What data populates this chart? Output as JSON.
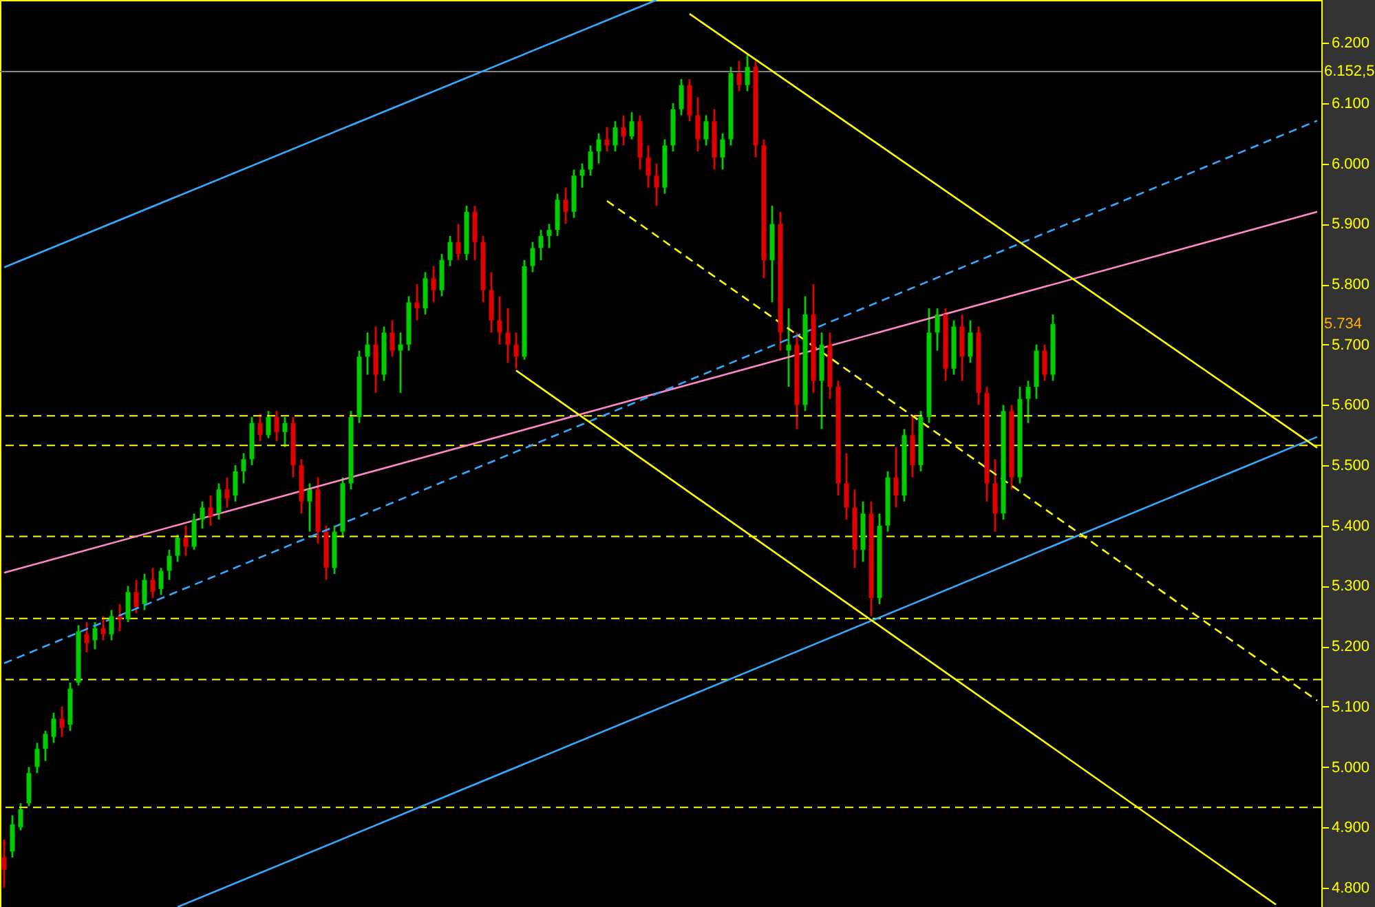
{
  "chart_data": {
    "type": "candlestick",
    "categories": [
      null,
      null,
      null,
      null,
      null,
      null,
      null,
      null,
      null,
      null,
      null,
      null,
      null,
      null,
      null,
      null,
      null,
      null,
      null,
      null,
      null,
      null,
      null,
      null,
      null,
      null,
      null,
      null,
      null,
      null,
      null,
      null,
      null,
      null,
      null,
      null,
      null,
      null,
      null,
      null,
      null,
      null,
      null,
      null,
      null,
      null,
      null,
      null,
      null,
      null,
      null,
      null,
      null,
      null,
      null,
      null,
      null,
      null,
      null,
      null,
      null,
      null,
      null,
      null,
      null,
      null,
      null,
      null,
      null,
      null,
      null,
      null,
      null,
      null,
      null,
      null,
      null,
      null,
      null,
      null,
      null,
      null,
      null,
      null,
      null,
      null,
      null,
      null,
      null,
      null,
      null,
      null,
      null,
      null,
      null,
      null,
      null,
      null,
      null,
      null,
      null,
      null,
      null,
      null,
      null,
      null,
      null,
      null,
      null,
      null,
      null,
      null,
      null,
      null,
      null,
      null,
      null,
      null,
      null,
      null,
      null,
      null,
      null,
      null,
      null,
      null,
      null,
      null,
      null,
      null,
      null,
      null,
      null,
      null,
      null,
      null,
      null,
      null,
      null,
      null,
      null,
      null,
      null,
      null,
      null,
      null,
      null,
      null,
      null,
      null,
      null,
      null,
      null,
      null,
      null,
      null,
      null,
      null,
      null,
      null
    ],
    "ohlc": [
      [
        4850,
        4880,
        4800,
        4830
      ],
      [
        4860,
        4920,
        4850,
        4905
      ],
      [
        4900,
        4940,
        4895,
        4930
      ],
      [
        4940,
        5000,
        4935,
        4990
      ],
      [
        5000,
        5040,
        4990,
        5030
      ],
      [
        5030,
        5060,
        5010,
        5055
      ],
      [
        5050,
        5090,
        5040,
        5080
      ],
      [
        5080,
        5100,
        5050,
        5065
      ],
      [
        5070,
        5140,
        5060,
        5130
      ],
      [
        5140,
        5235,
        5135,
        5225
      ],
      [
        5220,
        5240,
        5190,
        5205
      ],
      [
        5210,
        5240,
        5195,
        5230
      ],
      [
        5230,
        5250,
        5210,
        5220
      ],
      [
        5220,
        5260,
        5210,
        5250
      ],
      [
        5250,
        5270,
        5225,
        5245
      ],
      [
        5245,
        5300,
        5240,
        5290
      ],
      [
        5290,
        5310,
        5255,
        5265
      ],
      [
        5270,
        5320,
        5260,
        5310
      ],
      [
        5310,
        5330,
        5280,
        5290
      ],
      [
        5295,
        5330,
        5285,
        5325
      ],
      [
        5325,
        5360,
        5310,
        5350
      ],
      [
        5350,
        5385,
        5340,
        5380
      ],
      [
        5380,
        5400,
        5350,
        5365
      ],
      [
        5365,
        5420,
        5360,
        5410
      ],
      [
        5410,
        5440,
        5395,
        5430
      ],
      [
        5430,
        5450,
        5400,
        5415
      ],
      [
        5420,
        5470,
        5410,
        5460
      ],
      [
        5460,
        5480,
        5430,
        5445
      ],
      [
        5450,
        5500,
        5440,
        5490
      ],
      [
        5490,
        5520,
        5470,
        5510
      ],
      [
        5510,
        5580,
        5500,
        5570
      ],
      [
        5570,
        5585,
        5540,
        5550
      ],
      [
        5550,
        5590,
        5545,
        5580
      ],
      [
        5580,
        5590,
        5540,
        5555
      ],
      [
        5555,
        5580,
        5530,
        5570
      ],
      [
        5570,
        5580,
        5480,
        5500
      ],
      [
        5500,
        5510,
        5420,
        5440
      ],
      [
        5440,
        5470,
        5390,
        5460
      ],
      [
        5460,
        5480,
        5370,
        5390
      ],
      [
        5390,
        5400,
        5310,
        5330
      ],
      [
        5330,
        5400,
        5320,
        5390
      ],
      [
        5390,
        5480,
        5380,
        5470
      ],
      [
        5470,
        5590,
        5460,
        5580
      ],
      [
        5580,
        5690,
        5570,
        5680
      ],
      [
        5680,
        5720,
        5650,
        5700
      ],
      [
        5700,
        5730,
        5620,
        5650
      ],
      [
        5650,
        5730,
        5640,
        5720
      ],
      [
        5720,
        5740,
        5680,
        5690
      ],
      [
        5690,
        5720,
        5620,
        5700
      ],
      [
        5700,
        5780,
        5690,
        5770
      ],
      [
        5770,
        5800,
        5740,
        5760
      ],
      [
        5760,
        5820,
        5750,
        5810
      ],
      [
        5810,
        5830,
        5770,
        5790
      ],
      [
        5790,
        5850,
        5780,
        5840
      ],
      [
        5840,
        5880,
        5830,
        5870
      ],
      [
        5870,
        5900,
        5840,
        5850
      ],
      [
        5850,
        5930,
        5840,
        5920
      ],
      [
        5920,
        5930,
        5840,
        5870
      ],
      [
        5870,
        5880,
        5770,
        5790
      ],
      [
        5790,
        5820,
        5720,
        5740
      ],
      [
        5740,
        5780,
        5700,
        5720
      ],
      [
        5720,
        5760,
        5670,
        5700
      ],
      [
        5700,
        5720,
        5660,
        5680
      ],
      [
        5680,
        5840,
        5675,
        5830
      ],
      [
        5830,
        5870,
        5820,
        5860
      ],
      [
        5860,
        5890,
        5840,
        5880
      ],
      [
        5880,
        5900,
        5860,
        5890
      ],
      [
        5890,
        5950,
        5880,
        5940
      ],
      [
        5940,
        5960,
        5900,
        5920
      ],
      [
        5920,
        5990,
        5910,
        5980
      ],
      [
        5980,
        6000,
        5960,
        5990
      ],
      [
        5990,
        6030,
        5980,
        6020
      ],
      [
        6020,
        6050,
        6000,
        6040
      ],
      [
        6040,
        6060,
        6020,
        6030
      ],
      [
        6030,
        6070,
        6020,
        6060
      ],
      [
        6060,
        6080,
        6030,
        6045
      ],
      [
        6045,
        6085,
        6040,
        6070
      ],
      [
        6070,
        6080,
        5990,
        6010
      ],
      [
        6010,
        6030,
        5960,
        5980
      ],
      [
        5980,
        6000,
        5930,
        5960
      ],
      [
        5960,
        6040,
        5950,
        6030
      ],
      [
        6030,
        6100,
        6020,
        6090
      ],
      [
        6090,
        6140,
        6080,
        6130
      ],
      [
        6130,
        6140,
        6070,
        6080
      ],
      [
        6080,
        6110,
        6020,
        6040
      ],
      [
        6040,
        6080,
        6030,
        6070
      ],
      [
        6070,
        6090,
        5990,
        6010
      ],
      [
        6010,
        6050,
        5990,
        6040
      ],
      [
        6040,
        6160,
        6030,
        6150
      ],
      [
        6150,
        6170,
        6120,
        6130
      ],
      [
        6130,
        6180,
        6120,
        6160
      ],
      [
        6160,
        6170,
        6010,
        6030
      ],
      [
        6030,
        6040,
        5810,
        5840
      ],
      [
        5840,
        5930,
        5770,
        5900
      ],
      [
        5900,
        5920,
        5690,
        5720
      ],
      [
        5690,
        5760,
        5630,
        5700
      ],
      [
        5700,
        5720,
        5560,
        5600
      ],
      [
        5600,
        5780,
        5590,
        5750
      ],
      [
        5750,
        5800,
        5620,
        5640
      ],
      [
        5640,
        5720,
        5560,
        5700
      ],
      [
        5700,
        5720,
        5610,
        5630
      ],
      [
        5630,
        5640,
        5450,
        5470
      ],
      [
        5470,
        5520,
        5410,
        5430
      ],
      [
        5430,
        5460,
        5330,
        5360
      ],
      [
        5360,
        5440,
        5340,
        5420
      ],
      [
        5420,
        5440,
        5250,
        5280
      ],
      [
        5280,
        5420,
        5270,
        5400
      ],
      [
        5400,
        5490,
        5390,
        5480
      ],
      [
        5480,
        5530,
        5430,
        5450
      ],
      [
        5450,
        5560,
        5440,
        5550
      ],
      [
        5550,
        5580,
        5480,
        5500
      ],
      [
        5500,
        5590,
        5490,
        5580
      ],
      [
        5580,
        5760,
        5570,
        5720
      ],
      [
        5720,
        5760,
        5690,
        5750
      ],
      [
        5750,
        5760,
        5640,
        5660
      ],
      [
        5660,
        5740,
        5650,
        5730
      ],
      [
        5730,
        5750,
        5640,
        5680
      ],
      [
        5680,
        5740,
        5670,
        5720
      ],
      [
        5720,
        5730,
        5600,
        5620
      ],
      [
        5620,
        5630,
        5440,
        5470
      ],
      [
        5470,
        5510,
        5390,
        5420
      ],
      [
        5420,
        5600,
        5410,
        5590
      ],
      [
        5590,
        5600,
        5460,
        5480
      ],
      [
        5480,
        5630,
        5470,
        5610
      ],
      [
        5610,
        5640,
        5570,
        5630
      ],
      [
        5630,
        5700,
        5610,
        5690
      ],
      [
        5690,
        5700,
        5640,
        5650
      ],
      [
        5650,
        5750,
        5640,
        5734
      ],
      null,
      null,
      null,
      null,
      null,
      null,
      null,
      null,
      null,
      null,
      null,
      null,
      null,
      null,
      null,
      null,
      null,
      null,
      null,
      null,
      null,
      null,
      null,
      null,
      null,
      null,
      null,
      null,
      null,
      null,
      null,
      null
    ],
    "colors": [
      "#e00000",
      "#00cc00",
      "#00cc00",
      "#00cc00",
      "#00cc00",
      "#00cc00",
      "#00cc00",
      "#e00000",
      "#00cc00",
      "#00cc00",
      "#e00000",
      "#00cc00",
      "#e00000",
      "#00cc00",
      "#e00000",
      "#00cc00",
      "#e00000",
      "#00cc00",
      "#e00000",
      "#00cc00",
      "#00cc00",
      "#00cc00",
      "#e00000",
      "#00cc00",
      "#00cc00",
      "#e00000",
      "#00cc00",
      "#e00000",
      "#00cc00",
      "#00cc00",
      "#00cc00",
      "#e00000",
      "#00cc00",
      "#e00000",
      "#00cc00",
      "#e00000",
      "#e00000",
      "#00cc00",
      "#e00000",
      "#e00000",
      "#00cc00",
      "#00cc00",
      "#00cc00",
      "#00cc00",
      "#00cc00",
      "#e00000",
      "#00cc00",
      "#e00000",
      "#00cc00",
      "#00cc00",
      "#e00000",
      "#00cc00",
      "#e00000",
      "#00cc00",
      "#00cc00",
      "#e00000",
      "#00cc00",
      "#e00000",
      "#e00000",
      "#e00000",
      "#e00000",
      "#e00000",
      "#e00000",
      "#00cc00",
      "#00cc00",
      "#00cc00",
      "#00cc00",
      "#00cc00",
      "#e00000",
      "#00cc00",
      "#00cc00",
      "#00cc00",
      "#00cc00",
      "#e00000",
      "#00cc00",
      "#e00000",
      "#00cc00",
      "#e00000",
      "#e00000",
      "#e00000",
      "#00cc00",
      "#00cc00",
      "#00cc00",
      "#e00000",
      "#e00000",
      "#00cc00",
      "#e00000",
      "#00cc00",
      "#00cc00",
      "#e00000",
      "#00cc00",
      "#e00000",
      "#e00000",
      "#00cc00",
      "#e00000",
      "#00cc00",
      "#e00000",
      "#00cc00",
      "#e00000",
      "#00cc00",
      "#e00000",
      "#e00000",
      "#e00000",
      "#e00000",
      "#00cc00",
      "#e00000",
      "#00cc00",
      "#00cc00",
      "#e00000",
      "#00cc00",
      "#e00000",
      "#00cc00",
      "#00cc00",
      "#00cc00",
      "#e00000",
      "#00cc00",
      "#e00000",
      "#00cc00",
      "#e00000",
      "#e00000",
      "#e00000",
      "#00cc00",
      "#e00000",
      "#00cc00",
      "#00cc00",
      "#00cc00",
      "#e00000",
      "#00cc00",
      null,
      null,
      null,
      null,
      null,
      null,
      null,
      null,
      null,
      null,
      null,
      null,
      null,
      null,
      null,
      null,
      null,
      null,
      null,
      null,
      null,
      null,
      null,
      null,
      null,
      null,
      null,
      null,
      null,
      null,
      null,
      null
    ],
    "series": [
      {
        "type": "line",
        "color": "#ff88c8",
        "line_style": "solid",
        "values": [
          5322,
          null,
          null,
          null,
          null,
          null,
          null,
          null,
          null,
          null,
          null,
          null,
          null,
          null,
          null,
          null,
          null,
          null,
          null,
          null,
          null,
          null,
          null,
          null,
          null,
          null,
          null,
          null,
          null,
          null,
          null,
          null,
          null,
          null,
          null,
          null,
          null,
          null,
          null,
          null,
          null,
          null,
          null,
          null,
          null,
          null,
          null,
          null,
          null,
          null,
          null,
          null,
          null,
          null,
          null,
          null,
          null,
          null,
          null,
          null,
          null,
          null,
          null,
          null,
          null,
          null,
          null,
          null,
          null,
          null,
          null,
          null,
          null,
          null,
          null,
          null,
          null,
          null,
          null,
          null,
          null,
          null,
          null,
          null,
          null,
          null,
          null,
          null,
          null,
          null,
          null,
          null,
          null,
          null,
          null,
          null,
          null,
          null,
          null,
          null,
          null,
          null,
          null,
          null,
          null,
          null,
          null,
          null,
          null,
          null,
          null,
          null,
          null,
          null,
          null,
          null,
          null,
          null,
          null,
          null,
          null,
          null,
          null,
          null,
          null,
          null,
          null,
          null,
          null,
          null,
          null,
          null,
          null,
          null,
          null,
          null,
          null,
          null,
          null,
          null,
          null,
          null,
          null,
          null,
          null,
          null,
          null,
          null,
          null,
          null,
          null,
          null,
          null,
          null,
          null,
          null,
          null,
          null,
          null,
          5920
        ]
      },
      {
        "type": "line",
        "color": "#33aaff",
        "line_style": "dashed",
        "values": [
          5172,
          null,
          null,
          null,
          null,
          null,
          null,
          null,
          null,
          null,
          null,
          null,
          null,
          null,
          null,
          null,
          null,
          null,
          null,
          null,
          null,
          null,
          null,
          null,
          null,
          null,
          null,
          null,
          null,
          null,
          null,
          null,
          null,
          null,
          null,
          null,
          null,
          null,
          null,
          null,
          null,
          null,
          null,
          null,
          null,
          null,
          null,
          null,
          null,
          null,
          null,
          null,
          null,
          null,
          null,
          null,
          null,
          null,
          null,
          null,
          null,
          null,
          null,
          null,
          null,
          null,
          null,
          null,
          null,
          null,
          null,
          null,
          null,
          null,
          null,
          null,
          null,
          null,
          null,
          null,
          null,
          null,
          null,
          null,
          null,
          null,
          null,
          null,
          null,
          null,
          null,
          null,
          null,
          null,
          null,
          null,
          null,
          null,
          null,
          null,
          null,
          null,
          null,
          null,
          null,
          null,
          null,
          null,
          null,
          null,
          null,
          null,
          null,
          null,
          null,
          null,
          null,
          null,
          null,
          null,
          null,
          null,
          null,
          null,
          null,
          null,
          null,
          null,
          null,
          null,
          null,
          null,
          null,
          null,
          null,
          null,
          null,
          null,
          null,
          null,
          null,
          null,
          null,
          null,
          null,
          null,
          null,
          null,
          null,
          null,
          null,
          null,
          null,
          null,
          null,
          null,
          null,
          null,
          null,
          6071
        ]
      },
      {
        "type": "line",
        "color": "#33aaff",
        "line_style": "solid",
        "values": [
          5828,
          null,
          null,
          null,
          null,
          null,
          null,
          null,
          null,
          null,
          null,
          null,
          null,
          null,
          null,
          null,
          null,
          null,
          null,
          null,
          null,
          null,
          null,
          null,
          null,
          null,
          null,
          null,
          null,
          null,
          null,
          null,
          null,
          null,
          null,
          null,
          null,
          null,
          null,
          null,
          null,
          null,
          null,
          null,
          null,
          null,
          null,
          null,
          null,
          null,
          null,
          null,
          null,
          null,
          null,
          null,
          null,
          null,
          null,
          null,
          null,
          null,
          null,
          null,
          null,
          null,
          null,
          null,
          null,
          null,
          null,
          null,
          null,
          null,
          null,
          null,
          null,
          null,
          null,
          6271,
          null,
          null,
          null,
          null,
          null,
          null,
          null,
          null,
          null,
          null,
          null,
          null,
          null,
          null,
          null,
          null,
          null,
          null,
          null,
          null,
          null,
          null,
          null,
          null,
          null,
          null,
          null,
          null,
          null,
          null,
          null,
          null,
          null,
          null,
          null,
          null,
          null,
          null,
          null,
          null,
          null,
          null,
          null,
          null,
          null,
          null,
          null,
          null,
          null,
          null,
          null,
          null,
          null,
          null,
          null,
          null,
          null,
          null,
          null,
          null,
          null,
          null,
          null,
          null,
          null,
          null,
          null,
          null,
          null,
          null,
          null,
          null,
          null,
          null,
          null,
          null,
          null,
          null,
          null,
          null
        ]
      },
      {
        "type": "line",
        "color": "#33aaff",
        "line_style": "solid",
        "values": [
          null,
          null,
          null,
          null,
          null,
          null,
          null,
          null,
          null,
          null,
          null,
          null,
          null,
          null,
          null,
          null,
          null,
          null,
          null,
          null,
          null,
          4768,
          null,
          null,
          null,
          null,
          null,
          null,
          null,
          null,
          null,
          null,
          null,
          null,
          null,
          null,
          null,
          null,
          null,
          null,
          null,
          null,
          null,
          null,
          null,
          null,
          null,
          null,
          null,
          null,
          null,
          null,
          null,
          null,
          null,
          null,
          null,
          null,
          null,
          null,
          null,
          null,
          null,
          null,
          null,
          null,
          null,
          null,
          null,
          null,
          null,
          null,
          null,
          null,
          null,
          null,
          null,
          null,
          null,
          null,
          null,
          null,
          null,
          null,
          null,
          null,
          null,
          null,
          null,
          null,
          null,
          null,
          null,
          null,
          null,
          null,
          null,
          null,
          null,
          null,
          null,
          null,
          null,
          null,
          null,
          null,
          null,
          null,
          null,
          null,
          null,
          null,
          null,
          null,
          null,
          null,
          null,
          null,
          null,
          null,
          null,
          null,
          null,
          null,
          null,
          null,
          null,
          null,
          null,
          null,
          null,
          null,
          null,
          null,
          null,
          null,
          null,
          null,
          null,
          null,
          null,
          null,
          null,
          null,
          null,
          null,
          null,
          null,
          null,
          null,
          null,
          null,
          null,
          null,
          null,
          null,
          null,
          null,
          null,
          5547
        ]
      },
      {
        "type": "line",
        "color": "#ffff00",
        "line_style": "solid",
        "values": [
          null,
          null,
          null,
          null,
          null,
          null,
          null,
          null,
          null,
          null,
          null,
          null,
          null,
          null,
          null,
          null,
          null,
          null,
          null,
          null,
          null,
          null,
          null,
          null,
          null,
          null,
          null,
          null,
          null,
          null,
          null,
          null,
          null,
          null,
          null,
          null,
          null,
          null,
          null,
          null,
          null,
          null,
          null,
          null,
          null,
          null,
          null,
          null,
          null,
          null,
          null,
          null,
          null,
          null,
          null,
          null,
          null,
          null,
          null,
          null,
          null,
          null,
          null,
          null,
          null,
          null,
          null,
          null,
          null,
          null,
          null,
          null,
          null,
          null,
          null,
          null,
          null,
          null,
          null,
          null,
          null,
          null,
          null,
          6248,
          null,
          null,
          null,
          null,
          null,
          null,
          null,
          null,
          null,
          null,
          null,
          null,
          null,
          null,
          null,
          null,
          null,
          null,
          null,
          null,
          null,
          null,
          null,
          null,
          null,
          null,
          null,
          null,
          null,
          null,
          null,
          null,
          null,
          null,
          null,
          null,
          null,
          null,
          null,
          null,
          null,
          null,
          null,
          null,
          null,
          null,
          null,
          null,
          null,
          null,
          null,
          null,
          null,
          null,
          null,
          null,
          null,
          null,
          null,
          null,
          null,
          null,
          null,
          null,
          null,
          null,
          null,
          null,
          null,
          null,
          null,
          null,
          null,
          null,
          null,
          5529
        ]
      },
      {
        "type": "line",
        "color": "#ffff00",
        "line_style": "solid",
        "values": [
          null,
          null,
          null,
          null,
          null,
          null,
          null,
          null,
          null,
          null,
          null,
          null,
          null,
          null,
          null,
          null,
          null,
          null,
          null,
          null,
          null,
          null,
          null,
          null,
          null,
          null,
          null,
          null,
          null,
          null,
          null,
          null,
          null,
          null,
          null,
          null,
          null,
          null,
          null,
          null,
          null,
          null,
          null,
          null,
          null,
          null,
          null,
          null,
          null,
          null,
          null,
          null,
          null,
          null,
          null,
          null,
          null,
          null,
          null,
          null,
          null,
          null,
          5657,
          null,
          null,
          null,
          null,
          null,
          null,
          null,
          null,
          null,
          null,
          null,
          null,
          null,
          null,
          null,
          null,
          null,
          null,
          null,
          null,
          null,
          null,
          null,
          null,
          null,
          null,
          null,
          null,
          null,
          null,
          null,
          null,
          null,
          null,
          null,
          null,
          null,
          null,
          null,
          null,
          null,
          null,
          null,
          null,
          null,
          null,
          null,
          null,
          null,
          null,
          null,
          null,
          null,
          null,
          null,
          null,
          null,
          null,
          null,
          null,
          null,
          null,
          null,
          null,
          null,
          null,
          null,
          null,
          null,
          null,
          null,
          null,
          null,
          null,
          null,
          null,
          null,
          null,
          null,
          null,
          null,
          null,
          null,
          null,
          null,
          null,
          null,
          null,
          null,
          null,
          null,
          4772,
          null,
          null,
          null,
          null,
          null
        ]
      },
      {
        "type": "line",
        "color": "#ffff00",
        "line_style": "dashed",
        "values": [
          null,
          null,
          null,
          null,
          null,
          null,
          null,
          null,
          null,
          null,
          null,
          null,
          null,
          null,
          null,
          null,
          null,
          null,
          null,
          null,
          null,
          null,
          null,
          null,
          null,
          null,
          null,
          null,
          null,
          null,
          null,
          null,
          null,
          null,
          null,
          null,
          null,
          null,
          null,
          null,
          null,
          null,
          null,
          null,
          null,
          null,
          null,
          null,
          null,
          null,
          null,
          null,
          null,
          null,
          null,
          null,
          null,
          null,
          null,
          null,
          null,
          null,
          null,
          null,
          null,
          null,
          null,
          null,
          null,
          null,
          null,
          null,
          null,
          5938,
          null,
          null,
          null,
          null,
          null,
          null,
          null,
          null,
          null,
          null,
          null,
          null,
          null,
          null,
          null,
          null,
          null,
          null,
          null,
          null,
          null,
          null,
          null,
          null,
          null,
          null,
          null,
          null,
          null,
          null,
          null,
          null,
          null,
          null,
          null,
          null,
          null,
          null,
          null,
          null,
          null,
          null,
          null,
          null,
          null,
          null,
          null,
          null,
          null,
          null,
          null,
          null,
          null,
          null,
          null,
          null,
          null,
          null,
          null,
          null,
          null,
          null,
          null,
          null,
          null,
          null,
          null,
          null,
          null,
          null,
          null,
          null,
          null,
          null,
          null,
          null,
          null,
          null,
          null,
          null,
          null,
          null,
          null,
          null,
          null,
          5110
        ]
      }
    ],
    "ylim": [
      4768,
      6271
    ],
    "yticks": [
      {
        "value": 4800,
        "label": "4.800"
      },
      {
        "value": 4900,
        "label": "4.900"
      },
      {
        "value": 5000,
        "label": "5.000"
      },
      {
        "value": 5100,
        "label": "5.100"
      },
      {
        "value": 5200,
        "label": "5.200"
      },
      {
        "value": 5300,
        "label": "5.300"
      },
      {
        "value": 5400,
        "label": "5.400"
      },
      {
        "value": 5500,
        "label": "5.500"
      },
      {
        "value": 5600,
        "label": "5.600"
      },
      {
        "value": 5700,
        "label": "5.700"
      },
      {
        "value": 5800,
        "label": "5.800"
      },
      {
        "value": 5900,
        "label": "5.900"
      },
      {
        "value": 6000,
        "label": "6.000"
      },
      {
        "value": 6100,
        "label": "6.100"
      },
      {
        "value": 6200,
        "label": "6.200"
      }
    ],
    "tick_labels": "y",
    "ref_lines": [
      {
        "axis": "y",
        "value": 6152.5,
        "label": "6.152,5",
        "color": "#808080",
        "line_style": "solid"
      },
      {
        "axis": "y",
        "value": 5582,
        "color": "#ffff00",
        "line_style": "dashed"
      },
      {
        "axis": "y",
        "value": 5533,
        "color": "#ffff00",
        "line_style": "dashed"
      },
      {
        "axis": "y",
        "value": 5382,
        "color": "#ffff00",
        "line_style": "dashed"
      },
      {
        "axis": "y",
        "value": 5246,
        "color": "#ffff00",
        "line_style": "dashed"
      },
      {
        "axis": "y",
        "value": 5145,
        "color": "#ffff00",
        "line_style": "dashed"
      },
      {
        "axis": "y",
        "value": 4933,
        "color": "#ffff00",
        "line_style": "dashed"
      }
    ],
    "annotations": [
      "5.734"
    ]
  }
}
